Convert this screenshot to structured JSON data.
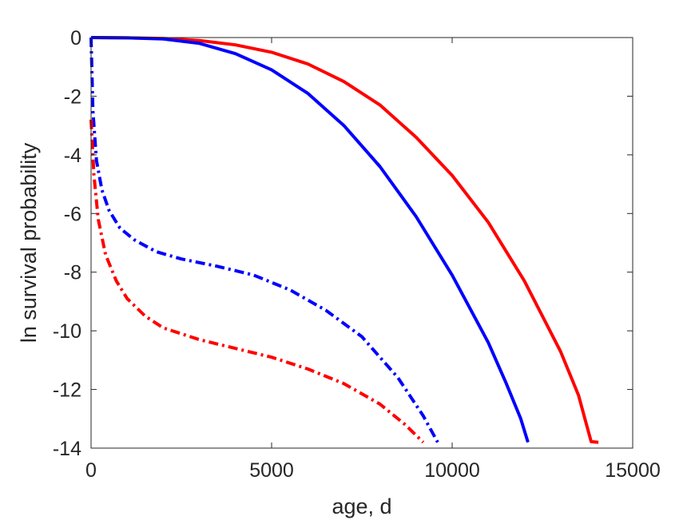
{
  "chart_data": {
    "type": "line",
    "title": "",
    "xlabel": "age, d",
    "ylabel": "ln survival probability",
    "xlim": [
      0,
      15000
    ],
    "ylim": [
      -14,
      0
    ],
    "xticks": [
      "0",
      "5000",
      "10000",
      "15000"
    ],
    "yticks": [
      "0",
      "-2",
      "-4",
      "-6",
      "-8",
      "-10",
      "-12",
      "-14"
    ],
    "grid": false,
    "legend": "none",
    "series": [
      {
        "color": "#ff0000",
        "style": "solid",
        "points": [
          [
            0,
            0
          ],
          [
            1000,
            -0.01
          ],
          [
            2000,
            -0.03
          ],
          [
            3000,
            -0.1
          ],
          [
            4000,
            -0.25
          ],
          [
            5000,
            -0.5
          ],
          [
            6000,
            -0.9
          ],
          [
            7000,
            -1.5
          ],
          [
            8000,
            -2.3
          ],
          [
            9000,
            -3.4
          ],
          [
            10000,
            -4.7
          ],
          [
            11000,
            -6.3
          ],
          [
            12000,
            -8.3
          ],
          [
            13000,
            -10.7
          ],
          [
            13500,
            -12.2
          ],
          [
            13700,
            -13.1
          ],
          [
            13850,
            -13.78
          ],
          [
            14050,
            -13.8
          ]
        ]
      },
      {
        "color": "#0000ff",
        "style": "solid",
        "points": [
          [
            0,
            0
          ],
          [
            1000,
            -0.01
          ],
          [
            2000,
            -0.05
          ],
          [
            3000,
            -0.2
          ],
          [
            4000,
            -0.55
          ],
          [
            5000,
            -1.1
          ],
          [
            6000,
            -1.9
          ],
          [
            7000,
            -3.0
          ],
          [
            8000,
            -4.4
          ],
          [
            9000,
            -6.1
          ],
          [
            10000,
            -8.1
          ],
          [
            11000,
            -10.4
          ],
          [
            11500,
            -11.8
          ],
          [
            11900,
            -13.0
          ],
          [
            12100,
            -13.8
          ]
        ]
      },
      {
        "color": "#0000ff",
        "style": "dashdot",
        "points": [
          [
            0,
            0
          ],
          [
            50,
            -2.5
          ],
          [
            150,
            -4.2
          ],
          [
            300,
            -5.2
          ],
          [
            500,
            -5.9
          ],
          [
            800,
            -6.5
          ],
          [
            1200,
            -6.9
          ],
          [
            1800,
            -7.3
          ],
          [
            2500,
            -7.55
          ],
          [
            3500,
            -7.8
          ],
          [
            4500,
            -8.1
          ],
          [
            5500,
            -8.6
          ],
          [
            6500,
            -9.3
          ],
          [
            7500,
            -10.2
          ],
          [
            8500,
            -11.6
          ],
          [
            9200,
            -12.9
          ],
          [
            9600,
            -13.8
          ]
        ]
      },
      {
        "color": "#ff0000",
        "style": "dashdot",
        "points": [
          [
            0,
            -2.8
          ],
          [
            80,
            -4.7
          ],
          [
            200,
            -6.2
          ],
          [
            400,
            -7.4
          ],
          [
            700,
            -8.3
          ],
          [
            1000,
            -8.9
          ],
          [
            1500,
            -9.5
          ],
          [
            2000,
            -9.9
          ],
          [
            3000,
            -10.3
          ],
          [
            4000,
            -10.6
          ],
          [
            5000,
            -10.9
          ],
          [
            6000,
            -11.3
          ],
          [
            7000,
            -11.8
          ],
          [
            8000,
            -12.5
          ],
          [
            8700,
            -13.2
          ],
          [
            9200,
            -13.8
          ]
        ]
      }
    ]
  }
}
